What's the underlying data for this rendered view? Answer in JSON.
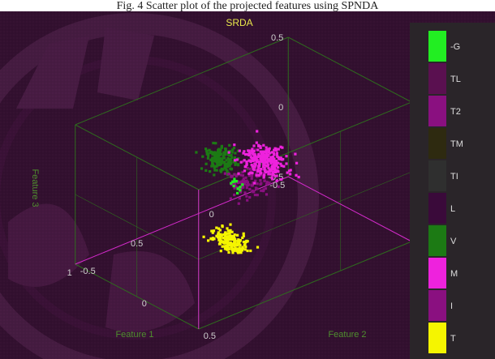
{
  "caption": "Fig. 4 Scatter plot of the projected features using SPNDA",
  "chart_data": {
    "type": "scatter",
    "projection": "3d",
    "title": "SRDA",
    "xlabel": "Feature 1",
    "ylabel": "Feature 2",
    "zlabel": "Feature 3",
    "xlim": [
      -0.5,
      1
    ],
    "ylim": [
      -0.5,
      0.5
    ],
    "zlim": [
      -0.5,
      0.5
    ],
    "x_ticks": [
      "-0.5",
      "0",
      "0.5",
      "1"
    ],
    "y_ticks": [
      "-0.5",
      "0",
      "0.5"
    ],
    "z_ticks": [
      "-0.5",
      "0",
      "0.5"
    ],
    "grid": true,
    "legend_position": "right",
    "series": [
      {
        "name": "-G",
        "color": "#22ee22",
        "count": 12,
        "center": [
          0.35,
          0.05,
          0.05
        ],
        "spread": [
          0.05,
          0.08,
          0.06
        ]
      },
      {
        "name": "TL",
        "color": "#5a1050",
        "count": 0,
        "center": [
          0.3,
          0.1,
          0.1
        ],
        "spread": [
          0.1,
          0.1,
          0.1
        ]
      },
      {
        "name": "T2",
        "color": "#8a1080",
        "count": 90,
        "center": [
          0.3,
          0.1,
          0.08
        ],
        "spread": [
          0.12,
          0.1,
          0.09
        ]
      },
      {
        "name": "TM",
        "color": "#2e2a10",
        "count": 0,
        "center": [
          0.3,
          0.1,
          0.1
        ],
        "spread": [
          0.1,
          0.1,
          0.1
        ]
      },
      {
        "name": "TI",
        "color": "#2f2f2f",
        "count": 0,
        "center": [
          0.3,
          0.1,
          0.1
        ],
        "spread": [
          0.1,
          0.1,
          0.1
        ]
      },
      {
        "name": "L",
        "color": "#3a0a3a",
        "count": 0,
        "center": [
          0.3,
          0.1,
          0.1
        ],
        "spread": [
          0.1,
          0.1,
          0.1
        ]
      },
      {
        "name": "V",
        "color": "#1c7a14",
        "count": 170,
        "center": [
          0.58,
          0.2,
          0.4
        ],
        "spread": [
          0.07,
          0.1,
          0.08
        ]
      },
      {
        "name": "M",
        "color": "#ee22dd",
        "count": 260,
        "center": [
          0.05,
          -0.05,
          0.05
        ],
        "spread": [
          0.1,
          0.14,
          0.09
        ]
      },
      {
        "name": "I",
        "color": "#8a1080",
        "count": 40,
        "center": [
          0.15,
          0.0,
          0.05
        ],
        "spread": [
          0.12,
          0.12,
          0.1
        ]
      },
      {
        "name": "T",
        "color": "#f5f500",
        "count": 190,
        "center": [
          0.45,
          0.12,
          -0.28
        ],
        "spread": [
          0.06,
          0.12,
          0.06
        ]
      }
    ]
  }
}
